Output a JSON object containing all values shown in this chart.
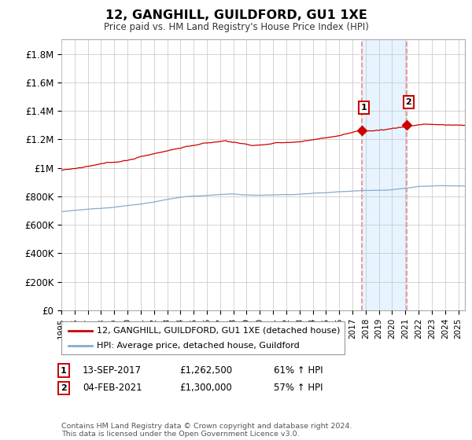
{
  "title": "12, GANGHILL, GUILDFORD, GU1 1XE",
  "subtitle": "Price paid vs. HM Land Registry's House Price Index (HPI)",
  "ylim": [
    0,
    1900000
  ],
  "yticks": [
    0,
    200000,
    400000,
    600000,
    800000,
    1000000,
    1200000,
    1400000,
    1600000,
    1800000
  ],
  "ytick_labels": [
    "£0",
    "£200K",
    "£400K",
    "£600K",
    "£800K",
    "£1M",
    "£1.2M",
    "£1.4M",
    "£1.6M",
    "£1.8M"
  ],
  "x_start_year": 1995,
  "x_end_year": 2025,
  "legend_line1": "12, GANGHILL, GUILDFORD, GU1 1XE (detached house)",
  "legend_line2": "HPI: Average price, detached house, Guildford",
  "sale1_label": "1",
  "sale1_date": "13-SEP-2017",
  "sale1_price_val": 1262500,
  "sale1_price_str": "£1,262,500",
  "sale1_pct": "61% ↑ HPI",
  "sale1_year": 2017.71,
  "sale2_label": "2",
  "sale2_date": "04-FEB-2021",
  "sale2_price_val": 1300000,
  "sale2_price_str": "£1,300,000",
  "sale2_pct": "57% ↑ HPI",
  "sale2_year": 2021.09,
  "footnote": "Contains HM Land Registry data © Crown copyright and database right 2024.\nThis data is licensed under the Open Government Licence v3.0.",
  "red_color": "#cc0000",
  "blue_color": "#88aacc",
  "vline_color": "#ee8888",
  "shade_color": "#ddeeff",
  "grid_color": "#cccccc",
  "bg_color": "#ffffff"
}
